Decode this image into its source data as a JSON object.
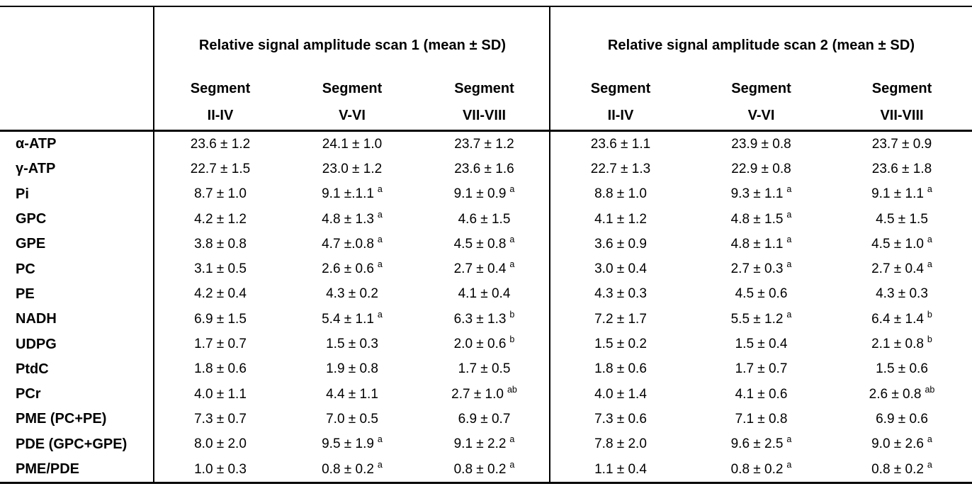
{
  "table": {
    "groups": [
      {
        "title": "Relative signal amplitude scan 1 (mean ± SD)"
      },
      {
        "title": "Relative signal amplitude scan 2 (mean ± SD)"
      }
    ],
    "segment_word": "Segment",
    "segment_ranges": [
      "II-IV",
      "V-VI",
      "VII-VIII"
    ],
    "rows": [
      {
        "label": "α-ATP",
        "values": [
          {
            "t": "23.6 ± 1.2",
            "s": ""
          },
          {
            "t": "24.1 ± 1.0",
            "s": ""
          },
          {
            "t": "23.7 ± 1.2",
            "s": ""
          },
          {
            "t": "23.6 ± 1.1",
            "s": ""
          },
          {
            "t": "23.9 ± 0.8",
            "s": ""
          },
          {
            "t": "23.7 ± 0.9",
            "s": ""
          }
        ]
      },
      {
        "label": "γ-ATP",
        "values": [
          {
            "t": "22.7 ± 1.5",
            "s": ""
          },
          {
            "t": "23.0 ± 1.2",
            "s": ""
          },
          {
            "t": "23.6 ± 1.6",
            "s": ""
          },
          {
            "t": "22.7 ± 1.3",
            "s": ""
          },
          {
            "t": "22.9 ± 0.8",
            "s": ""
          },
          {
            "t": "23.6 ± 1.8",
            "s": ""
          }
        ]
      },
      {
        "label": "Pi",
        "values": [
          {
            "t": "8.7 ± 1.0",
            "s": ""
          },
          {
            "t": "9.1 ±.1.1",
            "s": "a"
          },
          {
            "t": "9.1 ± 0.9",
            "s": "a"
          },
          {
            "t": "8.8 ± 1.0",
            "s": ""
          },
          {
            "t": "9.3 ± 1.1",
            "s": "a"
          },
          {
            "t": "9.1 ± 1.1",
            "s": "a"
          }
        ]
      },
      {
        "label": "GPC",
        "values": [
          {
            "t": "4.2 ± 1.2",
            "s": ""
          },
          {
            "t": "4.8 ± 1.3",
            "s": "a"
          },
          {
            "t": "4.6 ± 1.5",
            "s": ""
          },
          {
            "t": "4.1 ± 1.2",
            "s": ""
          },
          {
            "t": "4.8 ± 1.5",
            "s": "a"
          },
          {
            "t": "4.5 ± 1.5",
            "s": ""
          }
        ]
      },
      {
        "label": "GPE",
        "values": [
          {
            "t": "3.8 ± 0.8",
            "s": ""
          },
          {
            "t": "4.7 ±.0.8",
            "s": "a"
          },
          {
            "t": "4.5 ± 0.8",
            "s": "a"
          },
          {
            "t": "3.6 ± 0.9",
            "s": ""
          },
          {
            "t": "4.8 ± 1.1",
            "s": "a"
          },
          {
            "t": "4.5 ± 1.0",
            "s": "a"
          }
        ]
      },
      {
        "label": "PC",
        "values": [
          {
            "t": "3.1 ± 0.5",
            "s": ""
          },
          {
            "t": "2.6 ± 0.6",
            "s": "a"
          },
          {
            "t": "2.7 ± 0.4",
            "s": "a"
          },
          {
            "t": "3.0 ± 0.4",
            "s": ""
          },
          {
            "t": "2.7 ± 0.3",
            "s": "a"
          },
          {
            "t": "2.7 ± 0.4",
            "s": "a"
          }
        ]
      },
      {
        "label": "PE",
        "values": [
          {
            "t": "4.2 ± 0.4",
            "s": ""
          },
          {
            "t": "4.3 ± 0.2",
            "s": ""
          },
          {
            "t": "4.1 ± 0.4",
            "s": ""
          },
          {
            "t": "4.3 ± 0.3",
            "s": ""
          },
          {
            "t": "4.5 ± 0.6",
            "s": ""
          },
          {
            "t": "4.3 ± 0.3",
            "s": ""
          }
        ]
      },
      {
        "label": "NADH",
        "values": [
          {
            "t": "6.9 ± 1.5",
            "s": ""
          },
          {
            "t": "5.4 ± 1.1",
            "s": "a"
          },
          {
            "t": "6.3 ± 1.3",
            "s": "b"
          },
          {
            "t": "7.2 ± 1.7",
            "s": ""
          },
          {
            "t": "5.5 ± 1.2",
            "s": "a"
          },
          {
            "t": "6.4 ± 1.4",
            "s": "b"
          }
        ]
      },
      {
        "label": "UDPG",
        "values": [
          {
            "t": "1.7 ± 0.7",
            "s": ""
          },
          {
            "t": "1.5 ± 0.3",
            "s": ""
          },
          {
            "t": "2.0 ± 0.6",
            "s": "b"
          },
          {
            "t": "1.5 ± 0.2",
            "s": ""
          },
          {
            "t": "1.5 ± 0.4",
            "s": ""
          },
          {
            "t": "2.1 ± 0.8",
            "s": "b"
          }
        ]
      },
      {
        "label": "PtdC",
        "values": [
          {
            "t": "1.8 ± 0.6",
            "s": ""
          },
          {
            "t": "1.9 ± 0.8",
            "s": ""
          },
          {
            "t": "1.7 ± 0.5",
            "s": ""
          },
          {
            "t": "1.8 ± 0.6",
            "s": ""
          },
          {
            "t": "1.7 ± 0.7",
            "s": ""
          },
          {
            "t": "1.5 ± 0.6",
            "s": ""
          }
        ]
      },
      {
        "label": "PCr",
        "values": [
          {
            "t": "4.0 ± 1.1",
            "s": ""
          },
          {
            "t": "4.4 ± 1.1",
            "s": ""
          },
          {
            "t": "2.7 ± 1.0",
            "s": "ab"
          },
          {
            "t": "4.0 ± 1.4",
            "s": ""
          },
          {
            "t": "4.1 ± 0.6",
            "s": ""
          },
          {
            "t": "2.6 ± 0.8",
            "s": "ab"
          }
        ]
      },
      {
        "label": "PME (PC+PE)",
        "values": [
          {
            "t": "7.3 ± 0.7",
            "s": ""
          },
          {
            "t": "7.0 ± 0.5",
            "s": ""
          },
          {
            "t": "6.9 ± 0.7",
            "s": ""
          },
          {
            "t": "7.3 ± 0.6",
            "s": ""
          },
          {
            "t": "7.1 ± 0.8",
            "s": ""
          },
          {
            "t": "6.9 ± 0.6",
            "s": ""
          }
        ]
      },
      {
        "label": "PDE (GPC+GPE)",
        "values": [
          {
            "t": "8.0 ± 2.0",
            "s": ""
          },
          {
            "t": "9.5 ± 1.9",
            "s": "a"
          },
          {
            "t": "9.1 ± 2.2",
            "s": "a"
          },
          {
            "t": "7.8 ± 2.0",
            "s": ""
          },
          {
            "t": "9.6 ± 2.5",
            "s": "a"
          },
          {
            "t": "9.0 ± 2.6",
            "s": "a"
          }
        ]
      },
      {
        "label": "PME/PDE",
        "values": [
          {
            "t": "1.0 ± 0.3",
            "s": ""
          },
          {
            "t": "0.8 ± 0.2",
            "s": "a"
          },
          {
            "t": "0.8 ± 0.2",
            "s": "a"
          },
          {
            "t": "1.1 ± 0.4",
            "s": ""
          },
          {
            "t": "0.8 ± 0.2",
            "s": "a"
          },
          {
            "t": "0.8 ± 0.2",
            "s": "a"
          }
        ]
      }
    ],
    "colors": {
      "line": "#000000",
      "text": "#000000",
      "background": "#ffffff"
    }
  }
}
